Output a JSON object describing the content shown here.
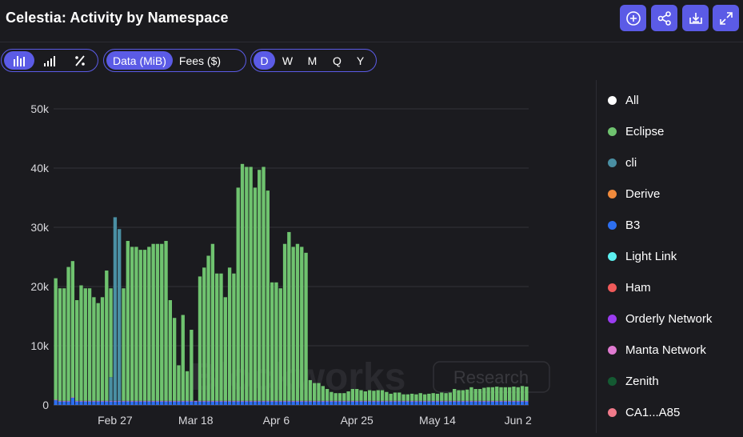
{
  "header": {
    "title": "Celestia: Activity by Namespace",
    "buttons": [
      {
        "icon": "plus-circle-icon"
      },
      {
        "icon": "share-icon"
      },
      {
        "icon": "download-icon"
      },
      {
        "icon": "expand-icon"
      }
    ]
  },
  "toolbar": {
    "chart_types": [
      {
        "icon": "stacked-bar-icon",
        "active": true
      },
      {
        "icon": "bar-icon",
        "active": false
      },
      {
        "icon": "percent-icon",
        "active": false
      }
    ],
    "metrics": [
      {
        "label": "Data (MiB)",
        "active": true
      },
      {
        "label": "Fees ($)",
        "active": false
      }
    ],
    "intervals": [
      {
        "label": "D",
        "active": true
      },
      {
        "label": "W",
        "active": false
      },
      {
        "label": "M",
        "active": false
      },
      {
        "label": "Q",
        "active": false
      },
      {
        "label": "Y",
        "active": false
      }
    ]
  },
  "watermark": {
    "brand": "Blockworks",
    "badge": "Research"
  },
  "legend": [
    {
      "label": "All",
      "color": "#ffffff"
    },
    {
      "label": "Eclipse",
      "color": "#6fc36f"
    },
    {
      "label": "cli",
      "color": "#4a8fa3"
    },
    {
      "label": "Derive",
      "color": "#f08a3c"
    },
    {
      "label": "B3",
      "color": "#2d6ff0"
    },
    {
      "label": "Light Link",
      "color": "#5cf0f0"
    },
    {
      "label": "Ham",
      "color": "#f05a5a"
    },
    {
      "label": "Orderly Network",
      "color": "#9b3cf0"
    },
    {
      "label": "Manta Network",
      "color": "#e07ad0"
    },
    {
      "label": "Zenith",
      "color": "#145a32"
    },
    {
      "label": "CA1...A85",
      "color": "#f07a8a"
    }
  ],
  "chart_data": {
    "type": "bar",
    "stacked": true,
    "ylim": [
      0,
      50000
    ],
    "y_ticks": [
      0,
      10000,
      20000,
      30000,
      40000,
      50000
    ],
    "y_tick_labels": [
      "0",
      "10k",
      "20k",
      "30k",
      "40k",
      "50k"
    ],
    "x_tick_labels": [
      "Feb 27",
      "Mar 18",
      "Apr 6",
      "Apr 25",
      "May 14",
      "Jun 2"
    ],
    "x_tick_index": [
      14,
      33,
      52,
      71,
      90,
      109
    ],
    "grid": true,
    "legend_position": "right",
    "series": [
      {
        "name": "Eclipse",
        "color": "#6fc36f",
        "values": [
          20500,
          19000,
          19000,
          22600,
          23000,
          17000,
          19500,
          19000,
          19000,
          17500,
          16500,
          17500,
          22000,
          15000,
          0,
          0,
          19000,
          27000,
          26000,
          26000,
          25500,
          25500,
          26000,
          26500,
          26500,
          26500,
          27000,
          17000,
          14000,
          6000,
          14500,
          5000,
          12000,
          0,
          21000,
          22500,
          24500,
          26500,
          21500,
          21500,
          17500,
          22500,
          21500,
          36000,
          40000,
          39500,
          39500,
          36000,
          39000,
          39500,
          35500,
          20000,
          20000,
          19000,
          26500,
          28500,
          26000,
          26500,
          26000,
          25000,
          3500,
          3000,
          3000,
          2500,
          2000,
          1500,
          1300,
          1300,
          1300,
          1600,
          2000,
          2000,
          1800,
          1600,
          1800,
          1700,
          1800,
          1800,
          1500,
          1200,
          1400,
          1400,
          1100,
          1100,
          1200,
          1100,
          1300,
          1100,
          1200,
          1300,
          1200,
          1400,
          1300,
          1400,
          2000,
          1800,
          1800,
          1900,
          2300,
          2000,
          2000,
          2200,
          2300,
          2300,
          2400,
          2300,
          2300,
          2300,
          2400,
          2300,
          2500,
          2400
        ]
      },
      {
        "name": "cli",
        "color": "#4a8fa3",
        "values": [
          0,
          0,
          0,
          0,
          0,
          0,
          0,
          0,
          0,
          0,
          0,
          0,
          0,
          4000,
          31000,
          29000,
          0,
          0,
          0,
          0,
          0,
          0,
          0,
          0,
          0,
          0,
          0,
          0,
          0,
          0,
          0,
          0,
          0,
          0,
          0,
          0,
          0,
          0,
          0,
          0,
          0,
          0,
          0,
          0,
          0,
          0,
          0,
          0,
          0,
          0,
          0,
          0,
          0,
          0,
          0,
          0,
          0,
          0,
          0,
          0,
          0,
          0,
          0,
          0,
          0,
          0,
          0,
          0,
          0,
          0,
          0,
          0,
          0,
          0,
          0,
          0,
          0,
          0,
          0,
          0,
          0,
          0,
          0,
          0,
          0,
          0,
          0,
          0,
          0,
          0,
          0,
          0,
          0,
          0,
          0,
          0,
          0,
          0,
          0,
          0,
          0,
          0,
          0,
          0,
          0,
          0,
          0,
          0,
          0,
          0,
          0,
          0
        ]
      },
      {
        "name": "Derive",
        "color": "#f08a3c",
        "values": [
          0,
          0,
          0,
          0,
          0,
          0,
          0,
          0,
          0,
          0,
          0,
          0,
          0,
          0,
          0,
          0,
          0,
          0,
          0,
          0,
          0,
          0,
          0,
          0,
          0,
          0,
          0,
          0,
          0,
          0,
          0,
          0,
          0,
          0,
          0,
          0,
          0,
          0,
          0,
          0,
          0,
          0,
          0,
          0,
          0,
          0,
          0,
          0,
          0,
          0,
          0,
          0,
          0,
          0,
          0,
          0,
          0,
          0,
          0,
          0,
          0,
          0,
          0,
          0,
          0,
          0,
          0,
          0,
          0,
          0,
          0,
          0,
          0,
          0,
          0,
          0,
          0,
          0,
          0,
          0,
          0,
          0,
          0,
          0,
          0,
          0,
          0,
          0,
          0,
          0,
          0,
          0,
          0,
          0,
          0,
          0,
          0,
          0,
          0,
          0,
          0,
          0,
          0,
          0,
          0,
          0,
          0,
          0,
          0,
          0,
          0,
          0,
          0
        ]
      },
      {
        "name": "B3",
        "color": "#2d6ff0",
        "values": [
          800,
          600,
          600,
          600,
          1200,
          600,
          600,
          600,
          600,
          600,
          600,
          600,
          600,
          600,
          600,
          600,
          600,
          600,
          600,
          600,
          600,
          600,
          600,
          600,
          600,
          600,
          600,
          600,
          600,
          600,
          600,
          600,
          600,
          600,
          600,
          600,
          600,
          600,
          600,
          600,
          600,
          600,
          600,
          600,
          600,
          600,
          600,
          600,
          600,
          600,
          600,
          600,
          600,
          600,
          600,
          600,
          600,
          600,
          600,
          600,
          600,
          600,
          600,
          600,
          600,
          600,
          600,
          600,
          600,
          600,
          600,
          600,
          600,
          600,
          600,
          600,
          600,
          600,
          600,
          600,
          600,
          600,
          600,
          600,
          600,
          600,
          600,
          600,
          600,
          600,
          600,
          600,
          600,
          600,
          600,
          600,
          600,
          600,
          600,
          600,
          600,
          600,
          600,
          600,
          600,
          600,
          600,
          600,
          600,
          600,
          600,
          600,
          600
        ]
      },
      {
        "name": "Manta Network",
        "color": "#e07ad0",
        "values": [
          100,
          100,
          100,
          100,
          100,
          100,
          100,
          100,
          100,
          100,
          100,
          100,
          100,
          100,
          100,
          100,
          100,
          100,
          100,
          100,
          100,
          100,
          100,
          100,
          100,
          100,
          100,
          100,
          100,
          100,
          100,
          100,
          100,
          100,
          100,
          100,
          100,
          100,
          100,
          100,
          100,
          100,
          100,
          100,
          100,
          100,
          100,
          100,
          100,
          100,
          100,
          100,
          100,
          100,
          100,
          100,
          100,
          100,
          100,
          100,
          100,
          100,
          100,
          100,
          100,
          100,
          100,
          100,
          100,
          100,
          100,
          100,
          100,
          100,
          100,
          100,
          100,
          100,
          100,
          100,
          100,
          100,
          100,
          100,
          100,
          100,
          100,
          100,
          100,
          100,
          100,
          100,
          100,
          100,
          100,
          100,
          100,
          100,
          100,
          100,
          100,
          100,
          100,
          100,
          100,
          100,
          100,
          100,
          100,
          100,
          100,
          100,
          100
        ]
      }
    ]
  }
}
